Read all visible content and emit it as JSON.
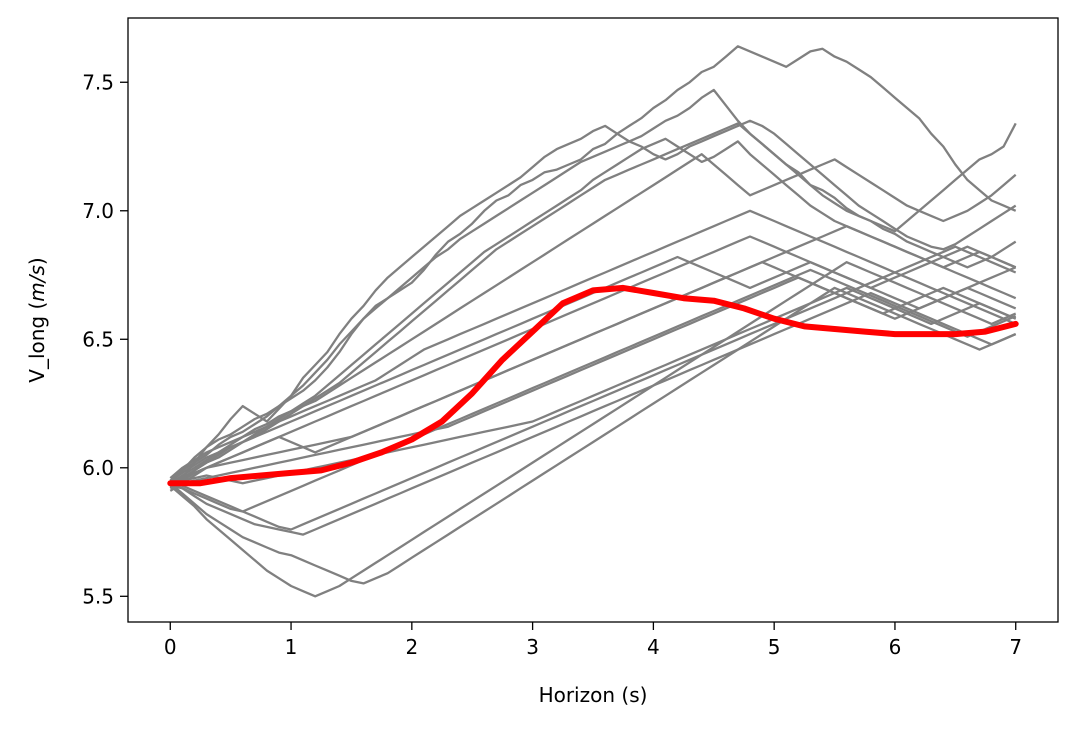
{
  "chart_data": {
    "type": "line",
    "xlabel": "Horizon (s)",
    "ylabel_prefix": "V_long (",
    "ylabel_unit": "m/s",
    "ylabel_suffix": ")",
    "xlim": [
      -0.35,
      7.35
    ],
    "ylim": [
      5.4,
      7.75
    ],
    "xticks": [
      0,
      1,
      2,
      3,
      4,
      5,
      6,
      7
    ],
    "yticks": [
      5.5,
      6.0,
      6.5,
      7.0,
      7.5
    ],
    "colors": {
      "samples": "#808080",
      "mean": "#ff0000"
    },
    "samples_x_start": 0,
    "samples_x_step": 0.1,
    "samples": [
      [
        5.94,
        5.99,
        6.04,
        6.08,
        6.11,
        6.13,
        6.16,
        6.19,
        6.21,
        6.24,
        6.27,
        6.3,
        6.34,
        6.39,
        6.45,
        6.52,
        6.58,
        6.63,
        6.66,
        6.69,
        6.72,
        6.77,
        6.83,
        6.88,
        6.91,
        6.95,
        7.0,
        7.04,
        7.06,
        7.1,
        7.12,
        7.15,
        7.16,
        7.18,
        7.2,
        7.24,
        7.26,
        7.3,
        7.33,
        7.36,
        7.4,
        7.43,
        7.47,
        7.5,
        7.54,
        7.56,
        7.6,
        7.64,
        7.62,
        7.6,
        7.58,
        7.56,
        7.59,
        7.62,
        7.63,
        7.6,
        7.58,
        7.55,
        7.52,
        7.48,
        7.44,
        7.4,
        7.36,
        7.3,
        7.25,
        7.18,
        7.12,
        7.08,
        7.04,
        7.02,
        7.0
      ],
      [
        5.93,
        5.96,
        6.02,
        6.08,
        6.13,
        6.19,
        6.24,
        6.21,
        6.18,
        6.23,
        6.28,
        6.35,
        6.4,
        6.45,
        6.52,
        6.58,
        6.63,
        6.69,
        6.74,
        6.78,
        6.82,
        6.86,
        6.9,
        6.94,
        6.98,
        7.01,
        7.04,
        7.07,
        7.1,
        7.13,
        7.17,
        7.21,
        7.24,
        7.26,
        7.28,
        7.31,
        7.33,
        7.3,
        7.27,
        7.29,
        7.32,
        7.35,
        7.37,
        7.4,
        7.44,
        7.47,
        7.41,
        7.35,
        7.3,
        7.26,
        7.22,
        7.18,
        7.15,
        7.1,
        7.08,
        7.05,
        7.01,
        6.98,
        6.96,
        6.93,
        6.91,
        6.88,
        6.86,
        6.84,
        6.82,
        6.8,
        6.78,
        6.8,
        6.82,
        6.85,
        6.88
      ],
      [
        5.95,
        5.99,
        6.02,
        6.05,
        6.09,
        6.12,
        6.14,
        6.17,
        6.2,
        6.24,
        6.28,
        6.32,
        6.37,
        6.42,
        6.48,
        6.53,
        6.58,
        6.62,
        6.66,
        6.7,
        6.74,
        6.78,
        6.82,
        6.85,
        6.89,
        6.92,
        6.95,
        6.98,
        7.01,
        7.04,
        7.07,
        7.1,
        7.13,
        7.16,
        7.19,
        7.21,
        7.23,
        7.25,
        7.27,
        7.25,
        7.22,
        7.2,
        7.22,
        7.25,
        7.27,
        7.29,
        7.31,
        7.33,
        7.35,
        7.33,
        7.3,
        7.26,
        7.22,
        7.18,
        7.14,
        7.1,
        7.06,
        7.02,
        6.99,
        6.96,
        6.93,
        6.9,
        6.88,
        6.86,
        6.85,
        6.87,
        6.9,
        6.93,
        6.96,
        6.99,
        7.02
      ],
      [
        5.92,
        5.95,
        5.99,
        6.02,
        6.05,
        6.08,
        6.1,
        6.13,
        6.16,
        6.19,
        6.22,
        6.25,
        6.28,
        6.32,
        6.36,
        6.4,
        6.44,
        6.48,
        6.52,
        6.56,
        6.6,
        6.64,
        6.68,
        6.72,
        6.76,
        6.8,
        6.84,
        6.87,
        6.9,
        6.93,
        6.96,
        6.99,
        7.02,
        7.05,
        7.08,
        7.12,
        7.15,
        7.18,
        7.21,
        7.24,
        7.26,
        7.28,
        7.25,
        7.22,
        7.19,
        7.21,
        7.24,
        7.27,
        7.22,
        7.18,
        7.14,
        7.1,
        7.06,
        7.02,
        6.99,
        6.96,
        6.94,
        6.92,
        6.9,
        6.88,
        6.86,
        6.84,
        6.82,
        6.8,
        6.78,
        6.8,
        6.82,
        6.84,
        6.82,
        6.8,
        6.78
      ],
      [
        5.94,
        5.97,
        6.0,
        6.03,
        6.06,
        6.09,
        6.12,
        6.15,
        6.17,
        6.2,
        6.22,
        6.24,
        6.27,
        6.3,
        6.33,
        6.37,
        6.41,
        6.45,
        6.49,
        6.53,
        6.57,
        6.61,
        6.65,
        6.69,
        6.73,
        6.77,
        6.81,
        6.85,
        6.88,
        6.91,
        6.94,
        6.97,
        7.0,
        7.03,
        7.06,
        7.09,
        7.12,
        7.14,
        7.16,
        7.18,
        7.2,
        7.22,
        7.24,
        7.26,
        7.28,
        7.3,
        7.32,
        7.34,
        7.3,
        7.26,
        7.22,
        7.18,
        7.14,
        7.1,
        7.06,
        7.03,
        7.0,
        6.98,
        6.96,
        6.94,
        6.92,
        6.96,
        7.0,
        7.04,
        7.08,
        7.12,
        7.16,
        7.2,
        7.22,
        7.25,
        7.34
      ],
      [
        5.93,
        5.96,
        5.99,
        6.02,
        6.04,
        6.07,
        6.1,
        6.12,
        6.15,
        6.18,
        6.21,
        6.24,
        6.26,
        6.29,
        6.32,
        6.35,
        6.38,
        6.41,
        6.44,
        6.47,
        6.5,
        6.53,
        6.56,
        6.59,
        6.62,
        6.65,
        6.68,
        6.71,
        6.74,
        6.77,
        6.8,
        6.83,
        6.86,
        6.89,
        6.92,
        6.95,
        6.98,
        7.01,
        7.04,
        7.07,
        7.1,
        7.13,
        7.16,
        7.19,
        7.22,
        7.18,
        7.14,
        7.1,
        7.06,
        7.08,
        7.1,
        7.12,
        7.14,
        7.16,
        7.18,
        7.2,
        7.17,
        7.14,
        7.11,
        7.08,
        7.05,
        7.02,
        7.0,
        6.98,
        6.96,
        6.98,
        7.0,
        7.03,
        7.06,
        7.1,
        7.14
      ],
      [
        5.96,
        6.0,
        6.03,
        6.06,
        6.08,
        6.1,
        6.12,
        6.14,
        6.16,
        6.18,
        6.2,
        6.22,
        6.24,
        6.26,
        6.28,
        6.3,
        6.32,
        6.34,
        6.37,
        6.4,
        6.43,
        6.46,
        6.48,
        6.5,
        6.52,
        6.54,
        6.56,
        6.58,
        6.6,
        6.62,
        6.64,
        6.66,
        6.68,
        6.7,
        6.72,
        6.74,
        6.76,
        6.78,
        6.8,
        6.82,
        6.84,
        6.86,
        6.88,
        6.9,
        6.92,
        6.94,
        6.96,
        6.98,
        7.0,
        6.98,
        6.96,
        6.94,
        6.92,
        6.9,
        6.88,
        6.86,
        6.84,
        6.82,
        6.8,
        6.78,
        6.76,
        6.74,
        6.72,
        6.7,
        6.68,
        6.66,
        6.64,
        6.62,
        6.6,
        6.58,
        6.56
      ],
      [
        5.91,
        5.94,
        5.97,
        6.0,
        6.02,
        6.04,
        6.06,
        6.08,
        6.1,
        6.12,
        6.14,
        6.16,
        6.18,
        6.2,
        6.22,
        6.24,
        6.26,
        6.28,
        6.3,
        6.32,
        6.34,
        6.36,
        6.38,
        6.4,
        6.42,
        6.44,
        6.46,
        6.48,
        6.5,
        6.52,
        6.54,
        6.56,
        6.58,
        6.6,
        6.62,
        6.64,
        6.66,
        6.68,
        6.7,
        6.72,
        6.74,
        6.76,
        6.78,
        6.8,
        6.82,
        6.84,
        6.86,
        6.88,
        6.9,
        6.88,
        6.86,
        6.84,
        6.82,
        6.8,
        6.78,
        6.76,
        6.74,
        6.72,
        6.7,
        6.72,
        6.74,
        6.76,
        6.78,
        6.8,
        6.82,
        6.84,
        6.86,
        6.84,
        6.82,
        6.8,
        6.78
      ],
      [
        5.95,
        5.98,
        6.01,
        6.04,
        6.06,
        6.08,
        6.1,
        6.12,
        6.14,
        6.16,
        6.18,
        6.2,
        6.22,
        6.24,
        6.26,
        6.28,
        6.3,
        6.32,
        6.34,
        6.36,
        6.38,
        6.4,
        6.42,
        6.44,
        6.46,
        6.48,
        6.5,
        6.52,
        6.54,
        6.56,
        6.58,
        6.6,
        6.62,
        6.64,
        6.66,
        6.68,
        6.7,
        6.72,
        6.74,
        6.76,
        6.78,
        6.8,
        6.82,
        6.8,
        6.78,
        6.76,
        6.74,
        6.72,
        6.7,
        6.72,
        6.74,
        6.76,
        6.78,
        6.8,
        6.78,
        6.76,
        6.74,
        6.72,
        6.7,
        6.68,
        6.66,
        6.64,
        6.62,
        6.64,
        6.66,
        6.68,
        6.7,
        6.72,
        6.74,
        6.76,
        6.78
      ],
      [
        5.92,
        5.95,
        5.98,
        6.0,
        6.02,
        6.04,
        6.06,
        6.08,
        6.1,
        6.12,
        6.1,
        6.08,
        6.06,
        6.08,
        6.1,
        6.12,
        6.14,
        6.16,
        6.18,
        6.2,
        6.22,
        6.24,
        6.26,
        6.28,
        6.3,
        6.32,
        6.34,
        6.36,
        6.38,
        6.4,
        6.42,
        6.44,
        6.46,
        6.48,
        6.5,
        6.52,
        6.54,
        6.56,
        6.58,
        6.6,
        6.62,
        6.64,
        6.66,
        6.68,
        6.7,
        6.72,
        6.74,
        6.76,
        6.78,
        6.8,
        6.82,
        6.84,
        6.86,
        6.88,
        6.9,
        6.92,
        6.94,
        6.92,
        6.9,
        6.88,
        6.86,
        6.84,
        6.82,
        6.8,
        6.78,
        6.76,
        6.74,
        6.72,
        6.7,
        6.68,
        6.66
      ],
      [
        5.94,
        5.96,
        5.98,
        6.0,
        6.01,
        6.02,
        6.03,
        6.04,
        6.05,
        6.06,
        6.07,
        6.08,
        6.09,
        6.1,
        6.11,
        6.12,
        6.14,
        6.16,
        6.18,
        6.2,
        6.22,
        6.24,
        6.26,
        6.28,
        6.3,
        6.32,
        6.34,
        6.36,
        6.38,
        6.4,
        6.42,
        6.44,
        6.46,
        6.48,
        6.5,
        6.52,
        6.54,
        6.56,
        6.58,
        6.6,
        6.62,
        6.64,
        6.66,
        6.68,
        6.7,
        6.72,
        6.74,
        6.76,
        6.78,
        6.8,
        6.78,
        6.76,
        6.74,
        6.72,
        6.7,
        6.68,
        6.66,
        6.64,
        6.62,
        6.6,
        6.58,
        6.6,
        6.62,
        6.64,
        6.66,
        6.68,
        6.7,
        6.68,
        6.66,
        6.64,
        6.62
      ],
      [
        5.93,
        5.94,
        5.95,
        5.96,
        5.97,
        5.98,
        5.99,
        6.0,
        6.01,
        6.02,
        6.03,
        6.04,
        6.05,
        6.06,
        6.07,
        6.08,
        6.09,
        6.1,
        6.11,
        6.12,
        6.13,
        6.14,
        6.15,
        6.16,
        6.18,
        6.2,
        6.22,
        6.24,
        6.26,
        6.28,
        6.3,
        6.32,
        6.34,
        6.36,
        6.38,
        6.4,
        6.42,
        6.44,
        6.46,
        6.48,
        6.5,
        6.52,
        6.54,
        6.56,
        6.58,
        6.6,
        6.62,
        6.64,
        6.66,
        6.68,
        6.7,
        6.72,
        6.74,
        6.72,
        6.7,
        6.68,
        6.66,
        6.64,
        6.62,
        6.6,
        6.62,
        6.64,
        6.66,
        6.68,
        6.7,
        6.68,
        6.66,
        6.64,
        6.62,
        6.6,
        6.58
      ],
      [
        5.94,
        5.95,
        5.96,
        5.97,
        5.96,
        5.95,
        5.94,
        5.95,
        5.96,
        5.97,
        5.98,
        5.99,
        6.0,
        6.01,
        6.02,
        6.03,
        6.04,
        6.05,
        6.06,
        6.07,
        6.08,
        6.09,
        6.1,
        6.11,
        6.12,
        6.13,
        6.14,
        6.15,
        6.16,
        6.17,
        6.18,
        6.2,
        6.22,
        6.24,
        6.26,
        6.28,
        6.3,
        6.32,
        6.34,
        6.36,
        6.38,
        6.4,
        6.42,
        6.44,
        6.46,
        6.48,
        6.5,
        6.52,
        6.54,
        6.56,
        6.58,
        6.6,
        6.62,
        6.64,
        6.66,
        6.68,
        6.7,
        6.68,
        6.66,
        6.64,
        6.62,
        6.6,
        6.58,
        6.56,
        6.58,
        6.6,
        6.62,
        6.64,
        6.62,
        6.6,
        6.58
      ],
      [
        5.93,
        5.92,
        5.9,
        5.88,
        5.86,
        5.84,
        5.83,
        5.85,
        5.87,
        5.89,
        5.91,
        5.93,
        5.95,
        5.97,
        5.99,
        6.01,
        6.03,
        6.05,
        6.07,
        6.09,
        6.11,
        6.13,
        6.15,
        6.17,
        6.19,
        6.21,
        6.23,
        6.25,
        6.27,
        6.29,
        6.31,
        6.33,
        6.35,
        6.37,
        6.39,
        6.41,
        6.43,
        6.45,
        6.47,
        6.49,
        6.51,
        6.53,
        6.55,
        6.57,
        6.59,
        6.61,
        6.63,
        6.65,
        6.67,
        6.69,
        6.71,
        6.73,
        6.75,
        6.77,
        6.75,
        6.73,
        6.71,
        6.69,
        6.67,
        6.65,
        6.63,
        6.61,
        6.59,
        6.57,
        6.55,
        6.53,
        6.51,
        6.53,
        6.55,
        6.57,
        6.59
      ],
      [
        5.94,
        5.92,
        5.89,
        5.86,
        5.84,
        5.82,
        5.8,
        5.78,
        5.77,
        5.76,
        5.75,
        5.74,
        5.76,
        5.78,
        5.8,
        5.82,
        5.84,
        5.86,
        5.88,
        5.9,
        5.92,
        5.94,
        5.96,
        5.98,
        6.0,
        6.02,
        6.04,
        6.06,
        6.08,
        6.1,
        6.12,
        6.14,
        6.16,
        6.18,
        6.2,
        6.22,
        6.24,
        6.26,
        6.28,
        6.3,
        6.32,
        6.34,
        6.36,
        6.38,
        6.4,
        6.42,
        6.44,
        6.46,
        6.48,
        6.5,
        6.52,
        6.54,
        6.56,
        6.58,
        6.6,
        6.62,
        6.64,
        6.66,
        6.68,
        6.66,
        6.64,
        6.62,
        6.6,
        6.58,
        6.56,
        6.54,
        6.52,
        6.5,
        6.48,
        6.5,
        6.52
      ],
      [
        5.94,
        5.9,
        5.86,
        5.82,
        5.79,
        5.76,
        5.73,
        5.71,
        5.69,
        5.67,
        5.66,
        5.64,
        5.62,
        5.6,
        5.58,
        5.56,
        5.55,
        5.57,
        5.59,
        5.62,
        5.65,
        5.68,
        5.71,
        5.74,
        5.77,
        5.8,
        5.83,
        5.86,
        5.89,
        5.92,
        5.95,
        5.98,
        6.01,
        6.04,
        6.07,
        6.1,
        6.13,
        6.16,
        6.19,
        6.22,
        6.25,
        6.28,
        6.31,
        6.34,
        6.37,
        6.4,
        6.43,
        6.46,
        6.49,
        6.52,
        6.55,
        6.58,
        6.61,
        6.64,
        6.67,
        6.7,
        6.68,
        6.66,
        6.64,
        6.62,
        6.6,
        6.58,
        6.56,
        6.54,
        6.52,
        6.5,
        6.48,
        6.46,
        6.48,
        6.5,
        6.52
      ],
      [
        5.93,
        5.89,
        5.85,
        5.8,
        5.76,
        5.72,
        5.68,
        5.64,
        5.6,
        5.57,
        5.54,
        5.52,
        5.5,
        5.52,
        5.54,
        5.57,
        5.6,
        5.63,
        5.66,
        5.69,
        5.72,
        5.75,
        5.78,
        5.81,
        5.84,
        5.87,
        5.9,
        5.93,
        5.96,
        5.99,
        6.02,
        6.05,
        6.08,
        6.11,
        6.14,
        6.17,
        6.2,
        6.23,
        6.26,
        6.29,
        6.32,
        6.35,
        6.38,
        6.41,
        6.44,
        6.47,
        6.5,
        6.53,
        6.56,
        6.59,
        6.62,
        6.65,
        6.68,
        6.71,
        6.74,
        6.77,
        6.8,
        6.78,
        6.76,
        6.74,
        6.72,
        6.7,
        6.68,
        6.66,
        6.64,
        6.62,
        6.6,
        6.58,
        6.56,
        6.58,
        6.6
      ],
      [
        5.95,
        5.93,
        5.91,
        5.89,
        5.87,
        5.85,
        5.83,
        5.81,
        5.79,
        5.77,
        5.76,
        5.78,
        5.8,
        5.82,
        5.84,
        5.86,
        5.88,
        5.9,
        5.92,
        5.94,
        5.96,
        5.98,
        6.0,
        6.02,
        6.04,
        6.06,
        6.08,
        6.1,
        6.12,
        6.14,
        6.16,
        6.18,
        6.2,
        6.22,
        6.24,
        6.26,
        6.28,
        6.3,
        6.32,
        6.34,
        6.36,
        6.38,
        6.4,
        6.42,
        6.44,
        6.46,
        6.48,
        6.5,
        6.52,
        6.54,
        6.56,
        6.58,
        6.6,
        6.62,
        6.64,
        6.66,
        6.68,
        6.7,
        6.72,
        6.74,
        6.76,
        6.78,
        6.8,
        6.82,
        6.84,
        6.86,
        6.84,
        6.82,
        6.8,
        6.78,
        6.76
      ]
    ],
    "mean": {
      "x": [
        0,
        0.25,
        0.5,
        0.75,
        1,
        1.25,
        1.5,
        1.75,
        2,
        2.25,
        2.5,
        2.75,
        3,
        3.25,
        3.5,
        3.75,
        4,
        4.25,
        4.5,
        4.75,
        5,
        5.25,
        5.5,
        5.75,
        6,
        6.25,
        6.5,
        6.75,
        7
      ],
      "y": [
        5.94,
        5.94,
        5.96,
        5.97,
        5.98,
        5.99,
        6.02,
        6.06,
        6.11,
        6.18,
        6.29,
        6.42,
        6.53,
        6.64,
        6.69,
        6.7,
        6.68,
        6.66,
        6.65,
        6.62,
        6.58,
        6.55,
        6.54,
        6.53,
        6.52,
        6.52,
        6.52,
        6.53,
        6.56
      ]
    }
  }
}
